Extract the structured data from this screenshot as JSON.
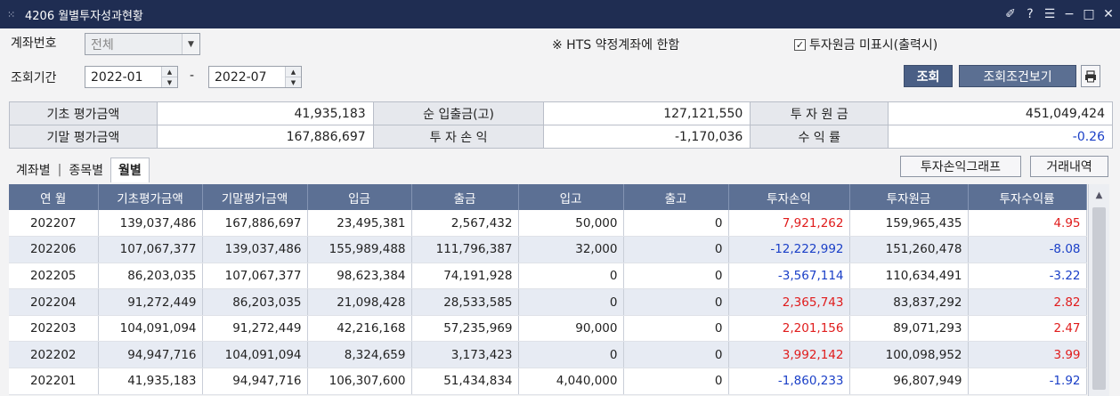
{
  "window": {
    "title": "4206 월별투자성과현황",
    "controls": [
      "✐",
      "?",
      "☰",
      "−",
      "□",
      "✕"
    ]
  },
  "filters": {
    "account_label": "계좌번호",
    "account_value": "전체",
    "period_label": "조회기간",
    "period_from": "2022-01",
    "period_sep": "-",
    "period_to": "2022-07",
    "notice": "※ HTS 약정계좌에 한함",
    "hide_principal_label": "투자원금 미표시(출력시)",
    "hide_principal_checked": true,
    "query_button": "조회",
    "condition_button": "조회조건보기",
    "print_icon": "printer-icon"
  },
  "summary": {
    "rows": [
      [
        {
          "label": "기초 평가금액",
          "value": "41,935,183"
        },
        {
          "label": "순 입출금(고)",
          "value": "127,121,550"
        },
        {
          "label": "투 자 원 금",
          "value": "451,049,424"
        }
      ],
      [
        {
          "label": "기말 평가금액",
          "value": "167,886,697"
        },
        {
          "label": "투 자 손 익",
          "value": "-1,170,036"
        },
        {
          "label": "수 익 률",
          "value": "-0.26"
        }
      ]
    ]
  },
  "tabs": {
    "items": [
      "계좌별",
      "종목별",
      "월별"
    ],
    "active": "월별"
  },
  "actions": {
    "graph_button": "투자손익그래프",
    "history_button": "거래내역"
  },
  "colors": {
    "positive": "#e01c1c",
    "negative": "#1a3fc7",
    "header_bg": "#5c7094",
    "title_bg": "#1f2d52"
  },
  "grid": {
    "columns": [
      "연 월",
      "기초평가금액",
      "기말평가금액",
      "입금",
      "출금",
      "입고",
      "출고",
      "투자손익",
      "투자원금",
      "투자수익률"
    ],
    "rows": [
      [
        "202207",
        "139,037,486",
        "167,886,697",
        "23,495,381",
        "2,567,432",
        "50,000",
        "0",
        "7,921,262",
        "159,965,435",
        "4.95"
      ],
      [
        "202206",
        "107,067,377",
        "139,037,486",
        "155,989,488",
        "111,796,387",
        "32,000",
        "0",
        "-12,222,992",
        "151,260,478",
        "-8.08"
      ],
      [
        "202205",
        "86,203,035",
        "107,067,377",
        "98,623,384",
        "74,191,928",
        "0",
        "0",
        "-3,567,114",
        "110,634,491",
        "-3.22"
      ],
      [
        "202204",
        "91,272,449",
        "86,203,035",
        "21,098,428",
        "28,533,585",
        "0",
        "0",
        "2,365,743",
        "83,837,292",
        "2.82"
      ],
      [
        "202203",
        "104,091,094",
        "91,272,449",
        "42,216,168",
        "57,235,969",
        "90,000",
        "0",
        "2,201,156",
        "89,071,293",
        "2.47"
      ],
      [
        "202202",
        "94,947,716",
        "104,091,094",
        "8,324,659",
        "3,173,423",
        "0",
        "0",
        "3,992,142",
        "100,098,952",
        "3.99"
      ],
      [
        "202201",
        "41,935,183",
        "94,947,716",
        "106,307,600",
        "51,434,834",
        "4,040,000",
        "0",
        "-1,860,233",
        "96,807,949",
        "-1.92"
      ]
    ]
  }
}
